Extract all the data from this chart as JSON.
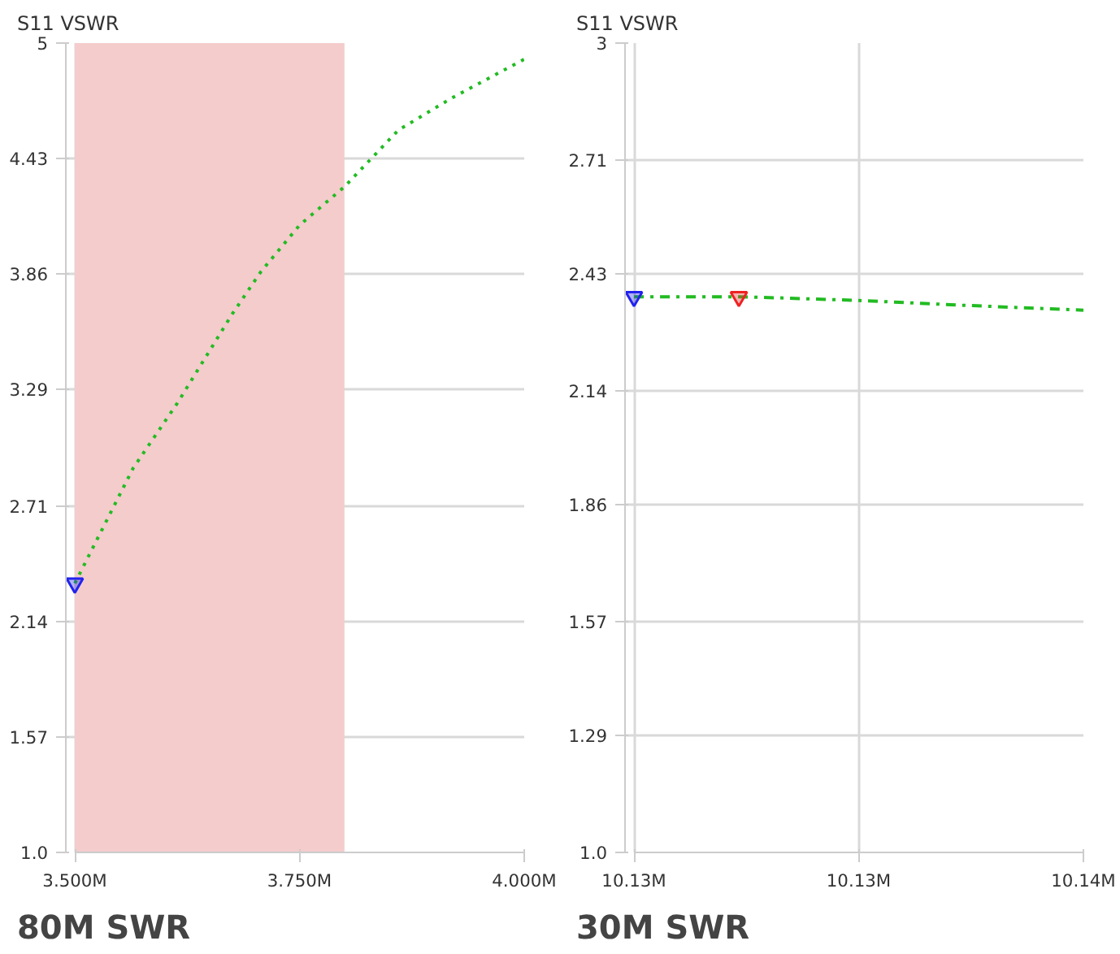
{
  "chart_data": [
    {
      "type": "line",
      "title": "80M SWR",
      "ylabel": "S11 VSWR",
      "xlim": [
        3.5,
        4.0
      ],
      "xticks": [
        {
          "value": 3.5,
          "label": "3.500M"
        },
        {
          "value": 3.75,
          "label": "3.750M"
        },
        {
          "value": 4.0,
          "label": "4.000M"
        }
      ],
      "ylim": [
        1.0,
        5
      ],
      "yticks": [
        {
          "value": 1.0,
          "label": "1.0"
        },
        1.57,
        2.14,
        2.71,
        3.29,
        3.86,
        4.43,
        5
      ],
      "grid": true,
      "line_style": "dotted",
      "bands": [
        {
          "axis": "x",
          "from": 3.5,
          "to": 3.8,
          "color": "#f4cccc"
        }
      ],
      "series": [
        {
          "type": "line",
          "color": "#22bb22",
          "x": [
            3.5,
            3.565,
            3.614,
            3.675,
            3.707,
            3.75,
            3.8,
            3.86,
            3.92,
            4.0
          ],
          "values": [
            2.33,
            2.9,
            3.22,
            3.66,
            3.87,
            4.1,
            4.29,
            4.57,
            4.73,
            4.92
          ]
        },
        {
          "type": "scatter",
          "marker": "triangle",
          "color": "#2222ee",
          "x": [
            3.5
          ],
          "values": [
            2.33
          ]
        }
      ]
    },
    {
      "type": "line",
      "title": "30M SWR",
      "ylabel": "S11 VSWR",
      "xlim": [
        10.125,
        10.14
      ],
      "xticks": [
        {
          "value": 10.125,
          "label": "10.13M"
        },
        {
          "value": 10.1325,
          "label": "10.13M"
        },
        {
          "value": 10.14,
          "label": "10.14M"
        }
      ],
      "ylim": [
        1.0,
        3
      ],
      "yticks": [
        {
          "value": 1.0,
          "label": "1.0"
        },
        1.29,
        1.57,
        1.86,
        2.14,
        2.43,
        2.71,
        3
      ],
      "grid": true,
      "line_style": "dashed",
      "series": [
        {
          "type": "line",
          "color": "#22bb22",
          "x": [
            10.125,
            10.1285,
            10.13,
            10.1325,
            10.136,
            10.14
          ],
          "values": [
            2.373,
            2.373,
            2.37,
            2.364,
            2.352,
            2.34
          ]
        },
        {
          "type": "scatter",
          "marker": "triangle",
          "color": "#2222ee",
          "x": [
            10.125
          ],
          "values": [
            2.373
          ]
        },
        {
          "type": "scatter",
          "marker": "triangle",
          "color": "#ee2222",
          "x": [
            10.1285
          ],
          "values": [
            2.373
          ]
        }
      ]
    }
  ]
}
